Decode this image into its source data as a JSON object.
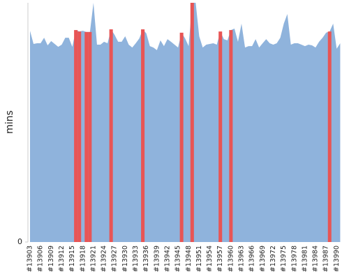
{
  "chart_data": {
    "type": "area",
    "ylabel": "mins",
    "categories": [
      "#13903",
      null,
      null,
      "#13906",
      null,
      null,
      "#13909",
      null,
      null,
      "#13912",
      null,
      null,
      "#13915",
      null,
      null,
      "#13918",
      null,
      null,
      "#13921",
      null,
      null,
      "#13924",
      null,
      null,
      "#13927",
      null,
      null,
      "#13930",
      null,
      null,
      "#13933",
      null,
      null,
      "#13936",
      null,
      null,
      "#13939",
      null,
      null,
      "#13942",
      null,
      null,
      "#13945",
      null,
      null,
      "#13948",
      null,
      null,
      "#13951",
      null,
      null,
      "#13954",
      null,
      null,
      "#13957",
      null,
      null,
      "#13960",
      null,
      null,
      "#13963",
      null,
      null,
      "#13966",
      null,
      null,
      "#13969",
      null,
      null,
      "#13972",
      null,
      null,
      "#13975",
      null,
      null,
      "#13978",
      null,
      null,
      "#13981",
      null,
      null,
      "#13984",
      null,
      null,
      "#13987",
      null,
      null,
      "#13990",
      null
    ],
    "series": [
      {
        "color": "#8fb3dc",
        "values": [
          88.3,
          82.8,
          83.1,
          83.1,
          85.4,
          82.2,
          84.0,
          82.8,
          81.6,
          82.5,
          85.4,
          85.4,
          81.6,
          88.6,
          88.0,
          88.3,
          87.8,
          87.8,
          100,
          82.5,
          82.5,
          83.7,
          83.1,
          88.9,
          86.6,
          83.7,
          83.7,
          86.0,
          82.5,
          81.3,
          83.1,
          85.1,
          88.9,
          87.2,
          81.9,
          81.3,
          80.2,
          84.3,
          81.9,
          84.8,
          83.7,
          82.5,
          81.3,
          87.5,
          85.1,
          81.9,
          100,
          100,
          86.0,
          81.3,
          82.5,
          82.8,
          83.1,
          82.5,
          88.0,
          84.8,
          84.3,
          88.6,
          89.2,
          83.7,
          91.3,
          81.3,
          81.9,
          81.9,
          84.8,
          81.3,
          83.1,
          84.8,
          83.1,
          82.5,
          83.1,
          85.4,
          91.3,
          95.3,
          82.5,
          83.1,
          83.1,
          82.5,
          81.9,
          82.5,
          82.2,
          81.3,
          83.7,
          85.4,
          87.5,
          88.0,
          91.3,
          80.8,
          83.1
        ]
      },
      {
        "color": "#e85555",
        "values": [
          null,
          null,
          null,
          null,
          null,
          null,
          null,
          null,
          null,
          null,
          null,
          null,
          null,
          88.6,
          88.0,
          null,
          87.8,
          87.8,
          null,
          null,
          null,
          null,
          null,
          88.9,
          null,
          null,
          null,
          null,
          null,
          null,
          null,
          null,
          88.9,
          null,
          null,
          null,
          null,
          null,
          null,
          null,
          null,
          null,
          null,
          87.5,
          null,
          null,
          100,
          null,
          null,
          null,
          null,
          null,
          null,
          null,
          88.0,
          null,
          null,
          88.6,
          null,
          null,
          null,
          null,
          null,
          null,
          null,
          null,
          null,
          null,
          null,
          null,
          null,
          null,
          null,
          null,
          null,
          null,
          null,
          null,
          null,
          null,
          null,
          null,
          null,
          null,
          null,
          88.0,
          null,
          null,
          null
        ]
      }
    ],
    "ylim": [
      0,
      100
    ],
    "yticks": [
      0
    ]
  }
}
